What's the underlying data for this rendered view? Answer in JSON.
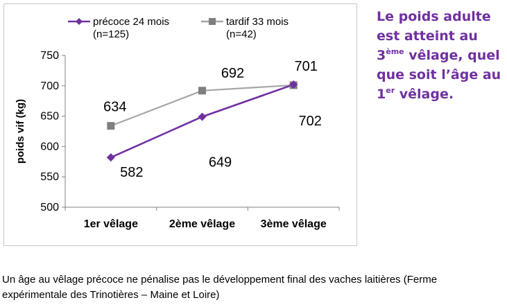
{
  "chart_data": {
    "type": "line",
    "categories": [
      "1er vêlage",
      "2ème vêlage",
      "3ème vêlage"
    ],
    "ylabel": "poids vif (kg)",
    "xlabel": "",
    "ylim": [
      500,
      750
    ],
    "yticks": [
      500,
      550,
      600,
      650,
      700,
      750
    ],
    "grid": false,
    "legend_position": "top",
    "series": [
      {
        "name": "précoce 24 mois",
        "name_sub": "(n=125)",
        "color": "#7030a0",
        "marker": "diamond",
        "values": [
          582,
          649,
          702
        ],
        "labels": [
          "582",
          "649",
          "702"
        ]
      },
      {
        "name": "tardif 33 mois",
        "name_sub": "(n=42)",
        "color": "#a6a6a6",
        "marker": "square",
        "values": [
          634,
          692,
          701
        ],
        "labels": [
          "634",
          "692",
          "701"
        ]
      }
    ]
  },
  "side_note": {
    "line1": "Le poids adulte",
    "line2": "est atteint au",
    "line3_num": "3",
    "line3_sup": "ème",
    "line3_rest": " vêlage, quel",
    "line4": "que soit l’âge au",
    "line5_num": "1",
    "line5_sup": "er",
    "line5_rest": " vêlage.",
    "color": "#7030a0"
  },
  "caption": {
    "line1": "Un âge au vêlage précoce ne pénalise pas le développement final des vaches laitières (Ferme",
    "line2": "expérimentale des Trinotières – Maine et Loire)"
  }
}
